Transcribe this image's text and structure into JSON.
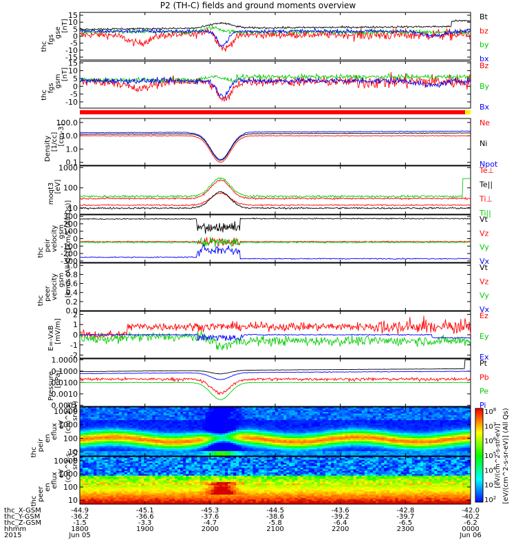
{
  "title": "P2 (TH-C) fields and ground moments overview",
  "chart_data": [
    {
      "type": "line",
      "id": "fgs_gse",
      "ylabel": [
        "thc",
        "fgs",
        "gse",
        "[nT]"
      ],
      "yticks": [
        15,
        10,
        5,
        0,
        -5,
        -10,
        -15
      ],
      "ylim": [
        -17,
        17
      ],
      "legend": [
        {
          "name": "Bt",
          "color": "#000000"
        },
        {
          "name": "bz",
          "color": "#ff0000"
        },
        {
          "name": "by",
          "color": "#00cc00"
        },
        {
          "name": "bx",
          "color": "#0000ff"
        }
      ]
    },
    {
      "type": "line",
      "id": "fgs_gsm",
      "ylabel": [
        "thc",
        "fgs",
        "gsm",
        "[nT]"
      ],
      "yticks": [
        15,
        10,
        5,
        0,
        -5,
        -10
      ],
      "ylim": [
        -14,
        16
      ],
      "legend": [
        {
          "name": "Bz",
          "color": "#ff0000"
        },
        {
          "name": "By",
          "color": "#00cc00"
        },
        {
          "name": "Bx",
          "color": "#0000ff"
        }
      ]
    },
    {
      "type": "line",
      "id": "density",
      "ylabel": [
        "Density",
        "[1/cc]",
        "[cm-3]"
      ],
      "yticks": [
        "100.0",
        "10.0",
        "1.0",
        "0.1"
      ],
      "ylim": [
        0.06,
        200
      ],
      "scale": "log",
      "legend": [
        {
          "name": "Ne",
          "color": "#ff0000"
        },
        {
          "name": "Ni",
          "color": "#000000"
        },
        {
          "name": "Npot",
          "color": "#0000ff"
        }
      ]
    },
    {
      "type": "line",
      "id": "temperature",
      "ylabel": [
        "moqt3",
        "[eV]"
      ],
      "yticks": [
        "1000",
        "100",
        "10"
      ],
      "ylim": [
        5,
        1200
      ],
      "scale": "log",
      "legend": [
        {
          "name": "Te⊥",
          "color": "#ff0000"
        },
        {
          "name": "Te||",
          "color": "#000000"
        },
        {
          "name": "Ti⊥",
          "color": "#ff0000"
        },
        {
          "name": "Ti||",
          "color": "#00cc00"
        }
      ]
    },
    {
      "type": "line",
      "id": "peir_velocity",
      "ylabel": [
        "thc",
        "peir",
        "velocity",
        "gsm",
        "[km/s (All Qs)]"
      ],
      "yticks": [
        300,
        200,
        100,
        0,
        -100,
        -200,
        -300
      ],
      "ylim": [
        -320,
        320
      ],
      "legend": [
        {
          "name": "Vt",
          "color": "#000000"
        },
        {
          "name": "Vz",
          "color": "#ff0000"
        },
        {
          "name": "Vy",
          "color": "#00cc00"
        },
        {
          "name": "Vx",
          "color": "#0000ff"
        }
      ]
    },
    {
      "type": "line",
      "id": "peer_velocity",
      "ylabel": [
        "thc",
        "peer",
        "velocity",
        "gsm",
        "[km/s (All Qs)]"
      ],
      "yticks": [
        "1.0",
        "0.8",
        "0.6",
        "0.4",
        "0.2",
        "0.0"
      ],
      "ylim": [
        0,
        1.05
      ],
      "legend": [
        {
          "name": "Vt",
          "color": "#000000"
        },
        {
          "name": "Vz",
          "color": "#ff0000"
        },
        {
          "name": "Vy",
          "color": "#00cc00"
        },
        {
          "name": "Vx",
          "color": "#0000ff"
        }
      ]
    },
    {
      "type": "line",
      "id": "efield",
      "ylabel": [
        "E=-VxB",
        "[mV/m]"
      ],
      "yticks": [
        2,
        1,
        0,
        -1,
        -2
      ],
      "ylim": [
        -2.3,
        2.3
      ],
      "legend": [
        {
          "name": "Ez",
          "color": "#ff0000"
        },
        {
          "name": "Ey",
          "color": "#00cc00"
        },
        {
          "name": "Ex",
          "color": "#0000ff"
        }
      ]
    },
    {
      "type": "line",
      "id": "pressure",
      "ylabel": [
        "Pressure",
        "[nPa]"
      ],
      "yticks": [
        "1.0000",
        "0.1000",
        "0.0100",
        "0.0010",
        "0.0001"
      ],
      "ylim": [
        8e-05,
        1.2
      ],
      "scale": "log",
      "legend": [
        {
          "name": "Pt",
          "color": "#000000"
        },
        {
          "name": "Pb",
          "color": "#ff0000"
        },
        {
          "name": "Pe",
          "color": "#00cc00"
        },
        {
          "name": "Pi",
          "color": "#0000ff"
        }
      ]
    },
    {
      "type": "heatmap",
      "id": "peir_spec",
      "ylabel": [
        "thc",
        "peir",
        "en",
        "eflux",
        "eV",
        "(cm^2-s-",
        "sr-eV)"
      ],
      "yticks": [
        "10000",
        "1000",
        "100",
        "10"
      ],
      "ylim": [
        5,
        20000
      ],
      "scale": "log"
    },
    {
      "type": "heatmap",
      "id": "peer_spec",
      "ylabel": [
        "thc",
        "peer",
        "en",
        "eflux",
        "eV",
        "(cm^2-s-",
        "sr-eV)"
      ],
      "yticks": [
        "10000",
        "1000",
        "100",
        "10"
      ],
      "ylim": [
        5,
        20000
      ],
      "scale": "log"
    }
  ],
  "colorbar": {
    "ticks": [
      "10^8",
      "10^7",
      "10^6",
      "10^5",
      "10^4",
      "10^3",
      "10^2"
    ],
    "label": "[eV/(cm^2-s-sr-eV)] (All Qs)",
    "label2": "[eV/(cm^2-s-str-eV)]"
  },
  "xaxis": {
    "rows": [
      {
        "label": "thc_X-GSM",
        "values": [
          "-44.9",
          "-45.1",
          "-45.3",
          "-44.5",
          "-43.6",
          "-42.8",
          "-42.0"
        ]
      },
      {
        "label": "thc_Y-GSM",
        "values": [
          "-36.2",
          "-36.6",
          "-37.6",
          "-38.6",
          "-39.2",
          "-39.7",
          "-40.2"
        ]
      },
      {
        "label": "thc_Z-GSM",
        "values": [
          "-1.5",
          "-3.3",
          "-4.7",
          "-5.8",
          "-6.4",
          "-6.5",
          "-6.2"
        ]
      },
      {
        "label": "hhmm",
        "values": [
          "1800",
          "1900",
          "2000",
          "2100",
          "2200",
          "2300",
          "0000"
        ]
      }
    ],
    "year": "2015",
    "date_start": "Jun 05",
    "date_end": "Jun 06"
  }
}
